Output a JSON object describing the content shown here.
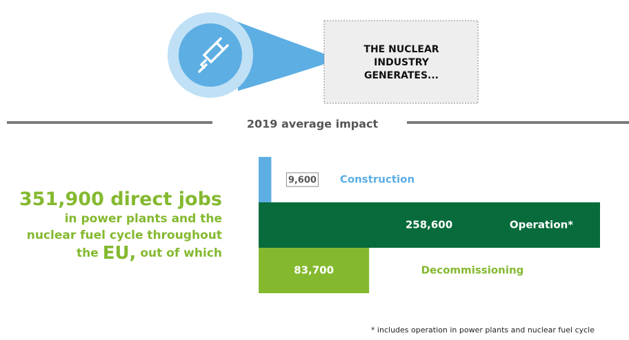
{
  "callout": [
    "THE NUCLEAR",
    "INDUSTRY",
    "GENERATES..."
  ],
  "headline": {
    "number": "351,900",
    "unit": "direct jobs",
    "line2": "in power plants and the",
    "line3": "nuclear fuel cycle throughout",
    "line4a": "the",
    "line4b": "EU,",
    "line4c": "out of which"
  },
  "chart_data": {
    "type": "bar",
    "orientation": "horizontal",
    "title": "2019 average impact",
    "categories": [
      "Construction",
      "Operation*",
      "Decommissioning"
    ],
    "values": [
      9600,
      258600,
      83700
    ],
    "value_labels": [
      "9,600",
      "258,600",
      "83,700"
    ],
    "colors": [
      "#5daee3",
      "#076b3b",
      "#84b92f"
    ],
    "footnote": "* includes operation in power plants and nuclear fuel cycle"
  }
}
